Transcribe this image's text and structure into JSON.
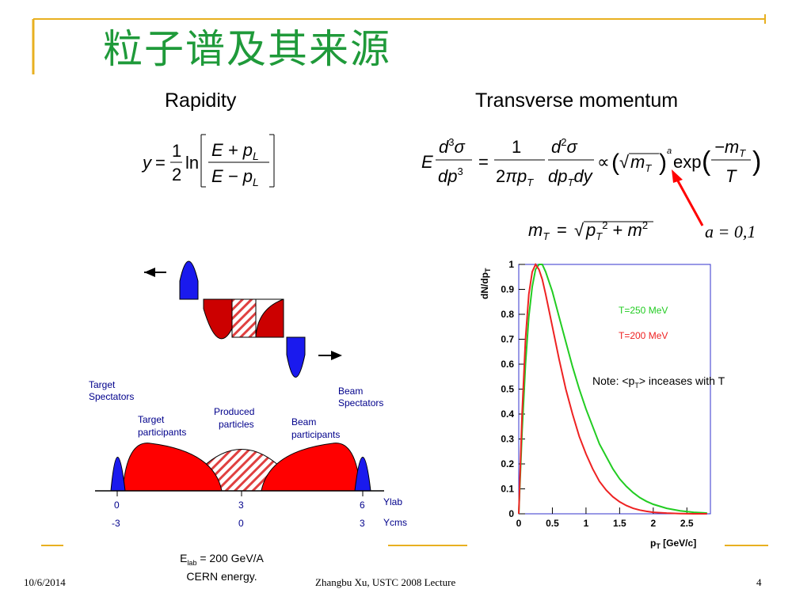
{
  "title": "粒子谱及其来源",
  "headings": {
    "rapidity": "Rapidity",
    "transverse": "Transverse momentum"
  },
  "formulas": {
    "rapidity": "y = 1/2 ln[(E + p_L)/(E − p_L)]",
    "pt_spectrum": "E d³σ/dp³ = 1/(2πp_T) d²σ/(dp_T dy) ∝ (√m_T)^a exp(−m_T/T)",
    "mt_def": "m_T = √(p_T² + m²)",
    "a_values": "a = 0,1"
  },
  "collision_diagram": {
    "labels": {
      "target_spectators": [
        "Target",
        "Spectators"
      ],
      "beam_spectators": [
        "Beam",
        "Spectators"
      ],
      "target_participants": [
        "Target",
        "participants"
      ],
      "produced": [
        "Produced",
        "particles"
      ],
      "beam_participants": [
        "Beam",
        "participants"
      ]
    },
    "axis": {
      "ylab_ticks": [
        "0",
        "3",
        "6"
      ],
      "ycms_ticks": [
        "-3",
        "0",
        "3"
      ],
      "ylab_label": "Ylab",
      "ycms_label": "Ycms"
    }
  },
  "energy_note": {
    "line1_prefix": "E",
    "line1_sub": "lab",
    "line1_suffix": " = 200 GeV/A",
    "line2": "CERN energy."
  },
  "chart_data": {
    "type": "line",
    "xlabel": "p_T [GeV/c]",
    "ylabel": "dN/dp_T",
    "xlim": [
      0,
      2.85
    ],
    "ylim": [
      0,
      1.0
    ],
    "xticks": [
      "0",
      "0.5",
      "1",
      "1.5",
      "2",
      "2.5"
    ],
    "yticks": [
      "0",
      "0.1",
      "0.2",
      "0.3",
      "0.4",
      "0.5",
      "0.6",
      "0.7",
      "0.8",
      "0.9",
      "1"
    ],
    "series": [
      {
        "name": "T=250 MeV",
        "color": "#22cc22",
        "x": [
          0.0,
          0.05,
          0.1,
          0.15,
          0.2,
          0.25,
          0.3,
          0.35,
          0.4,
          0.5,
          0.6,
          0.7,
          0.8,
          0.9,
          1.0,
          1.1,
          1.2,
          1.3,
          1.4,
          1.5,
          1.6,
          1.7,
          1.8,
          1.9,
          2.0,
          2.2,
          2.4,
          2.6,
          2.8
        ],
        "y": [
          0.0,
          0.33,
          0.6,
          0.79,
          0.91,
          0.98,
          1.0,
          1.0,
          0.97,
          0.89,
          0.79,
          0.69,
          0.59,
          0.5,
          0.42,
          0.35,
          0.28,
          0.23,
          0.18,
          0.14,
          0.11,
          0.085,
          0.065,
          0.05,
          0.038,
          0.022,
          0.012,
          0.006,
          0.003
        ]
      },
      {
        "name": "T=200 MeV",
        "color": "#ee2222",
        "x": [
          0.0,
          0.05,
          0.1,
          0.15,
          0.2,
          0.25,
          0.3,
          0.35,
          0.4,
          0.5,
          0.6,
          0.7,
          0.8,
          0.9,
          1.0,
          1.1,
          1.2,
          1.3,
          1.4,
          1.5,
          1.6,
          1.7,
          1.8,
          1.9,
          2.0,
          2.2,
          2.4,
          2.6,
          2.8
        ],
        "y": [
          0.0,
          0.4,
          0.7,
          0.88,
          0.97,
          1.0,
          0.98,
          0.94,
          0.88,
          0.75,
          0.62,
          0.5,
          0.4,
          0.31,
          0.24,
          0.18,
          0.13,
          0.095,
          0.068,
          0.048,
          0.033,
          0.022,
          0.015,
          0.01,
          0.006,
          0.003,
          0.001,
          0.0,
          0.0
        ]
      }
    ],
    "annotation": {
      "prefix": "Note: <p",
      "sub": "T",
      "suffix": "> inceases with T"
    }
  },
  "footer": {
    "date": "10/6/2014",
    "center": "Zhangbu Xu, USTC 2008 Lecture",
    "page": "4"
  },
  "colors": {
    "title": "#1f9a3a",
    "gold": "#e8b020",
    "blue": "#1010ee",
    "red": "#cc0000"
  }
}
